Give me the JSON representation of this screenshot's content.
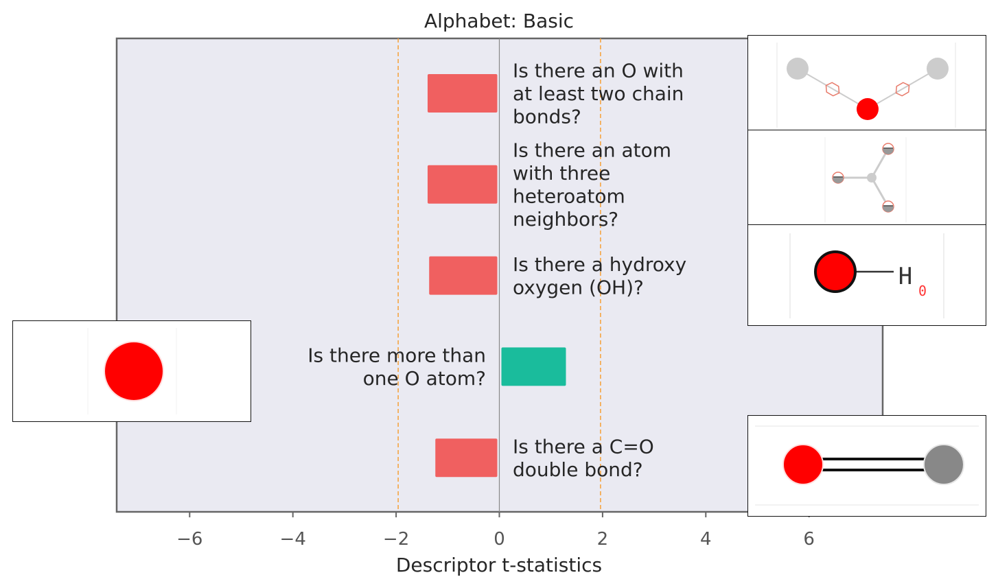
{
  "chart_data": {
    "type": "bar",
    "orientation": "horizontal",
    "title": "Alphabet: Basic",
    "xlabel": "Descriptor t-statistics",
    "ylabel": "",
    "xlim": [
      -7.5,
      7.5
    ],
    "xticks": [
      -6,
      -4,
      -2,
      0,
      2,
      4,
      6
    ],
    "xtick_labels": [
      "−6",
      "−4",
      "−2",
      "0",
      "2",
      "4",
      "6"
    ],
    "significance_lines": [
      -1.96,
      1.96
    ],
    "grid": false,
    "bars": [
      {
        "label": "Is there an O with at least two chain bonds?",
        "lines": [
          "Is there an O with",
          "at least two chain",
          "bonds?"
        ],
        "value": -1.35,
        "color": "#f06060"
      },
      {
        "label": "Is there an atom with three heteroatom neighbors?",
        "lines": [
          "Is there an atom",
          "with three",
          "heteroatom",
          "neighbors?"
        ],
        "value": -1.35,
        "color": "#f06060"
      },
      {
        "label": "Is there a hydroxy oxygen (OH)?",
        "lines": [
          "Is there a hydroxy",
          "oxygen (OH)?"
        ],
        "value": -1.32,
        "color": "#f06060"
      },
      {
        "label": "Is there more than one O atom?",
        "lines": [
          "Is there more than",
          "one O atom?"
        ],
        "value": 1.25,
        "color": "#1abc9c"
      },
      {
        "label": "Is there a C=O double bond?",
        "lines": [
          "Is there a C=O",
          "double bond?"
        ],
        "value": -1.2,
        "color": "#f06060"
      }
    ]
  },
  "thumbnails": [
    {
      "name": "o-two-chain-bonds-molecule-icon",
      "label_text": ""
    },
    {
      "name": "three-heteroatom-neighbors-molecule-icon",
      "label_text": ""
    },
    {
      "name": "hydroxy-oxygen-molecule-icon",
      "label_text": "H"
    },
    {
      "name": "single-o-atom-molecule-icon",
      "label_text": ""
    },
    {
      "name": "carbonyl-double-bond-molecule-icon",
      "label_text": ""
    }
  ],
  "colors": {
    "background": "#eaeaf2",
    "negative": "#f06060",
    "positive": "#1abc9c",
    "threshold": "#f5a542",
    "frame": "#666666"
  }
}
